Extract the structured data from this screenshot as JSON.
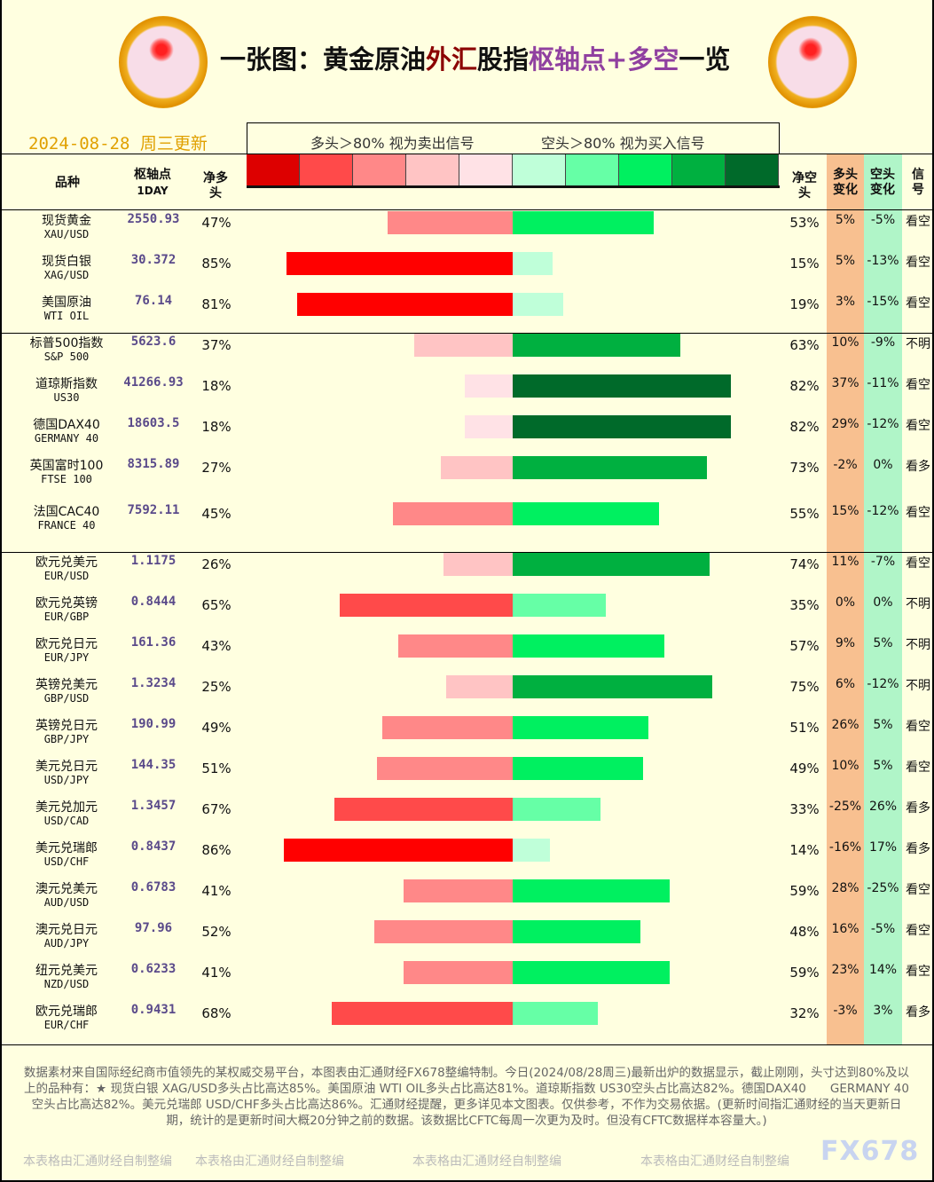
{
  "title": {
    "p1": "一张图：黄金原油",
    "p2": "外汇",
    "p3": "股指",
    "p4": "枢轴点+多空",
    "p5": "一览"
  },
  "date": "2024-08-28 周三更新",
  "legend": {
    "long_text": "多头＞80% 视为卖出信号",
    "short_text": "空头＞80% 视为买入信号",
    "colors": [
      "#dd0000",
      "#ff4a4a",
      "#ff8888",
      "#ffc4c4",
      "#ffe2e6",
      "#bfffd9",
      "#66ffa6",
      "#00f060",
      "#00b040",
      "#006a2a"
    ]
  },
  "headers": {
    "name": "品种",
    "pivot": "枢轴点",
    "pivot_sub": "1DAY",
    "net_long": "净多头",
    "net_short": "净空头",
    "long_change": "多头变化",
    "short_change": "空头变化",
    "signal": "信号"
  },
  "colors": {
    "long_change_bg": "#f8c090",
    "short_change_bg": "#b0f5c8",
    "date": "#e0a000",
    "pivot": "#5a4a8a"
  },
  "rows": [
    {
      "name": "现货黄金",
      "code": "XAU/USD",
      "pivot": "2550.93",
      "long": 47,
      "short": 53,
      "long_change": "5%",
      "short_change": "-5%",
      "signal": "看空"
    },
    {
      "name": "现货白银",
      "code": "XAG/USD",
      "pivot": "30.372",
      "long": 85,
      "short": 15,
      "long_change": "5%",
      "short_change": "-13%",
      "signal": "看空"
    },
    {
      "name": "美国原油",
      "code": "WTI OIL",
      "pivot": "76.14",
      "long": 81,
      "short": 19,
      "long_change": "3%",
      "short_change": "-15%",
      "signal": "看空"
    },
    {
      "name": "标普500指数",
      "code": "S&P 500",
      "pivot": "5623.6",
      "long": 37,
      "short": 63,
      "long_change": "10%",
      "short_change": "-9%",
      "signal": "不明"
    },
    {
      "name": "道琼斯指数",
      "code": "US30",
      "pivot": "41266.93",
      "long": 18,
      "short": 82,
      "long_change": "37%",
      "short_change": "-11%",
      "signal": "看空"
    },
    {
      "name": "德国DAX40",
      "code": "GERMANY 40",
      "pivot": "18603.5",
      "long": 18,
      "short": 82,
      "long_change": "29%",
      "short_change": "-12%",
      "signal": "看空"
    },
    {
      "name": "英国富时100",
      "code": "FTSE 100",
      "pivot": "8315.89",
      "long": 27,
      "short": 73,
      "long_change": "-2%",
      "short_change": "0%",
      "signal": "看多"
    },
    {
      "name": "法国CAC40",
      "code": "FRANCE 40",
      "pivot": "7592.11",
      "long": 45,
      "short": 55,
      "long_change": "15%",
      "short_change": "-12%",
      "signal": "看空"
    },
    {
      "name": "欧元兑美元",
      "code": "EUR/USD",
      "pivot": "1.1175",
      "long": 26,
      "short": 74,
      "long_change": "11%",
      "short_change": "-7%",
      "signal": "看空"
    },
    {
      "name": "欧元兑英镑",
      "code": "EUR/GBP",
      "pivot": "0.8444",
      "long": 65,
      "short": 35,
      "long_change": "0%",
      "short_change": "0%",
      "signal": "不明"
    },
    {
      "name": "欧元兑日元",
      "code": "EUR/JPY",
      "pivot": "161.36",
      "long": 43,
      "short": 57,
      "long_change": "9%",
      "short_change": "5%",
      "signal": "不明"
    },
    {
      "name": "英镑兑美元",
      "code": "GBP/USD",
      "pivot": "1.3234",
      "long": 25,
      "short": 75,
      "long_change": "6%",
      "short_change": "-12%",
      "signal": "不明"
    },
    {
      "name": "英镑兑日元",
      "code": "GBP/JPY",
      "pivot": "190.99",
      "long": 49,
      "short": 51,
      "long_change": "26%",
      "short_change": "5%",
      "signal": "看空"
    },
    {
      "name": "美元兑日元",
      "code": "USD/JPY",
      "pivot": "144.35",
      "long": 51,
      "short": 49,
      "long_change": "10%",
      "short_change": "5%",
      "signal": "看空"
    },
    {
      "name": "美元兑加元",
      "code": "USD/CAD",
      "pivot": "1.3457",
      "long": 67,
      "short": 33,
      "long_change": "-25%",
      "short_change": "26%",
      "signal": "看多"
    },
    {
      "name": "美元兑瑞郎",
      "code": "USD/CHF",
      "pivot": "0.8437",
      "long": 86,
      "short": 14,
      "long_change": "-16%",
      "short_change": "17%",
      "signal": "看多"
    },
    {
      "name": "澳元兑美元",
      "code": "AUD/USD",
      "pivot": "0.6783",
      "long": 41,
      "short": 59,
      "long_change": "28%",
      "short_change": "-25%",
      "signal": "看空"
    },
    {
      "name": "澳元兑日元",
      "code": "AUD/JPY",
      "pivot": "97.96",
      "long": 52,
      "short": 48,
      "long_change": "16%",
      "short_change": "-5%",
      "signal": "看空"
    },
    {
      "name": "纽元兑美元",
      "code": "NZD/USD",
      "pivot": "0.6233",
      "long": 41,
      "short": 59,
      "long_change": "23%",
      "short_change": "14%",
      "signal": "看空"
    },
    {
      "name": "欧元兑瑞郎",
      "code": "EUR/CHF",
      "pivot": "0.9431",
      "long": 68,
      "short": 32,
      "long_change": "-3%",
      "short_change": "3%",
      "signal": "看多"
    }
  ],
  "footer": "数据素材来自国际经纪商市值领先的某权威交易平台，本图表由汇通财经FX678整编特制。今日(2024/08/28周三)最新出炉的数据显示，截止刚刚，头寸达到80%及以上的品种有：★ 现货白银 XAG/USD多头占比高达85%。美国原油 WTI OIL多头占比高达81%。道琼斯指数 US30空头占比高达82%。德国DAX40　　GERMANY 40空头占比高达82%。美元兑瑞郎 USD/CHF多头占比高达86%。汇通财经提醒，更多详见本文图表。仅供参考，不作为交易依据。(更新时间指汇通财经的当天更新日期，统计的是更新时间大概20分钟之前的数据。该数据比CFTC每周一次更为及时。但没有CFTC数据样本容量大。)",
  "watermark": "本表格由汇通财经自制整编",
  "brand": "FX678"
}
